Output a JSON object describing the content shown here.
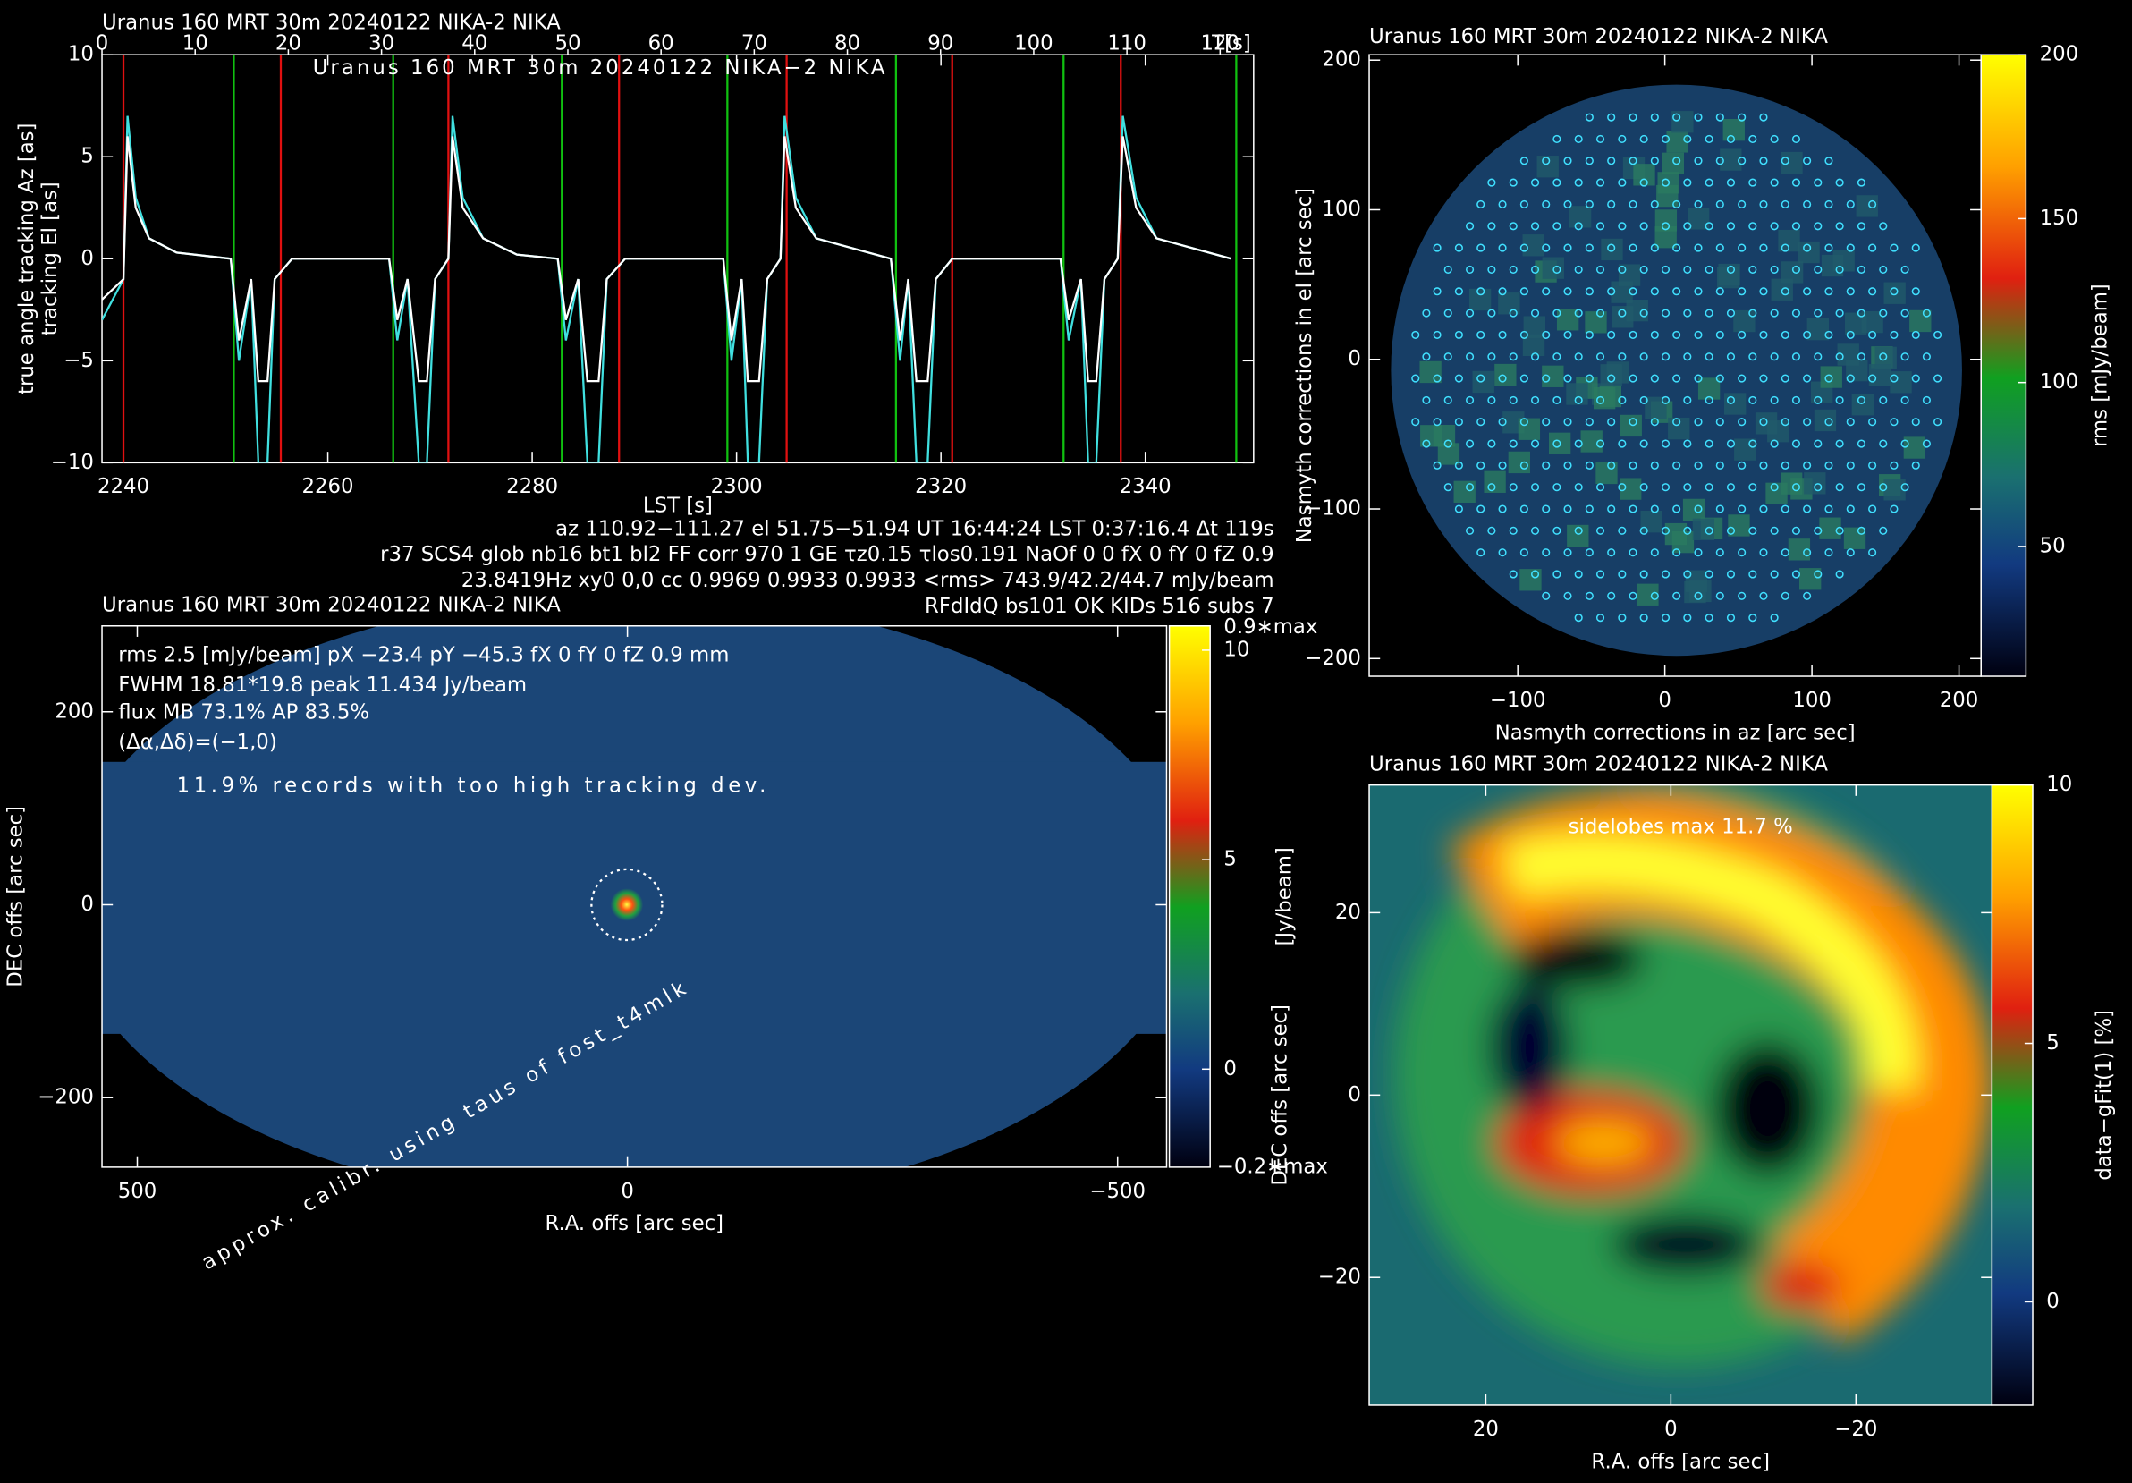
{
  "overlays": {
    "header": "Uranus   160  MRT  30m   20240122  NIKA−2  NIKA",
    "warning": "11.9% records with too high tracking dev.",
    "calibration": "approx. calibr. using taus of fost_t4mlk"
  },
  "chart_data": [
    {
      "type": "line",
      "title": "Uranus    160 MRT 30m  20240122 NIKA-2 NIKA",
      "xlabel": "LST [s]",
      "xlim": [
        2237.9,
        2350.6
      ],
      "xticks": [
        2240,
        2260,
        2280,
        2300,
        2320,
        2340
      ],
      "ylim": [
        -10,
        10
      ],
      "yticks": [
        {
          "value": -10,
          "label": "−10"
        },
        {
          "value": -5,
          "label": "−5"
        },
        0,
        5,
        10
      ],
      "top_xlim": [
        0,
        123.6
      ],
      "top_xticks": [
        0,
        10,
        20,
        30,
        40,
        50,
        60,
        70,
        80,
        90,
        100,
        110,
        120
      ],
      "top_xlabel": "T[s]",
      "x": [
        2237.9,
        2240.0,
        2240.4,
        2241.2,
        2242.5,
        2245.2,
        2250.5,
        2251.3,
        2252.5,
        2253.2,
        2254.1,
        2254.8,
        2256.5,
        2266.0,
        2266.8,
        2267.8,
        2268.9,
        2269.7,
        2270.5,
        2271.8,
        2272.2,
        2273.2,
        2275.2,
        2278.5,
        2282.5,
        2283.3,
        2284.5,
        2285.4,
        2286.5,
        2287.3,
        2289.1,
        2298.7,
        2299.5,
        2300.5,
        2301.1,
        2302.2,
        2303.0,
        2304.3,
        2304.7,
        2305.8,
        2307.8,
        2315.1,
        2316.0,
        2316.8,
        2317.6,
        2318.7,
        2319.5,
        2321.1,
        2331.7,
        2332.5,
        2333.7,
        2334.4,
        2335.2,
        2336.0,
        2337.3,
        2337.8,
        2339.1,
        2341.1,
        2348.4
      ],
      "series": [
        {
          "name": "true angle tracking Az [as]",
          "color": "#40e0e0",
          "values": [
            -3,
            -1,
            7,
            3,
            1,
            0.3,
            0,
            -5,
            -1,
            -10,
            -10,
            -1,
            0,
            0,
            -4,
            -1,
            -10,
            -10,
            -1,
            0,
            7,
            3,
            1,
            0.2,
            0,
            -4,
            -1,
            -10,
            -10,
            -1,
            0,
            0,
            -5,
            -1,
            -10,
            -10,
            -1,
            0,
            7,
            3,
            1,
            0,
            -5,
            -1,
            -10,
            -10,
            -1,
            0,
            0,
            -4,
            -1,
            -10,
            -10,
            -1,
            0,
            7,
            3,
            1,
            0
          ]
        },
        {
          "name": "tracking El [as]",
          "color": "#ffffff",
          "values": [
            -2,
            -1,
            6,
            2.5,
            1,
            0.3,
            0,
            -4,
            -1,
            -6,
            -6,
            -1,
            0,
            0,
            -3,
            -1,
            -6,
            -6,
            -1,
            0,
            6,
            2.5,
            1,
            0.2,
            0,
            -3,
            -1,
            -6,
            -6,
            -1,
            0,
            0,
            -4,
            -1,
            -6,
            -6,
            -1,
            0,
            6,
            2.5,
            1,
            0,
            -4,
            -1,
            -6,
            -6,
            -1,
            0,
            0,
            -3,
            -1,
            -6,
            -6,
            -1,
            0,
            6,
            2.5,
            1,
            0
          ]
        }
      ],
      "scan_starts": {
        "color": "#e01010",
        "x": [
          2240.0,
          2255.4,
          2271.8,
          2288.5,
          2304.9,
          2321.1,
          2337.6
        ]
      },
      "scan_ends": {
        "color": "#10c010",
        "x": [
          2250.8,
          2266.4,
          2282.9,
          2299.1,
          2315.6,
          2332.0,
          2348.9
        ]
      },
      "info": [
        "az 110.92−111.27 el 51.75−51.94 UT 16:44:24 LST 0:37:16.4 Δt 119s",
        "r37 SCS4 glob nb16 bt1 bl2 FF corr 970 1 GE τz0.15 τlos0.191 NaOf 0 0 fX 0 fY 0 fZ 0.9",
        "23.8419Hz xy0 0,0 cc 0.9969 0.9933 0.9933 <rms> 743.9/42.2/44.7 mJy/beam",
        "RFdIdQ bs101 OK KIDs 516 subs 7"
      ]
    },
    {
      "type": "heatmap",
      "title": "Uranus    160 MRT 30m  20240122 NIKA-2 NIKA",
      "xlabel": "R.A. offs [arc sec]",
      "ylabel": "DEC offs [arc sec]",
      "xlim": [
        536,
        -550
      ],
      "xticks": [
        500,
        0,
        {
          "value": -500,
          "label": "−500"
        }
      ],
      "ylim": [
        -272,
        289
      ],
      "yticks": [
        {
          "value": -200,
          "label": "−200"
        },
        0,
        200
      ],
      "annotations": [
        "rms 2.5 [mJy/beam] pX −23.4 pY −45.3 fX 0 fY 0 fZ 0.9 mm",
        "FWHM 18.81*19.8 peak 11.434 Jy/beam",
        "flux MB 73.1% AP 83.5%",
        "(Δα,Δδ)=(−1,0)"
      ],
      "colorbar": {
        "clim": [
          -2.34,
          10.58
        ],
        "ticks": [
          0,
          5,
          10
        ],
        "label": "[Jy/beam]",
        "top_label": "0.9∗max",
        "bottom_label": "−0.2∗max"
      }
    },
    {
      "type": "heatmap",
      "title": "Uranus   160 MRT 30m  20240122 NIKA-2 NIKA",
      "xlabel": "Nasmyth corrections in az [arc sec]",
      "ylabel": "Nasmyth corrections in el [arc sec]",
      "xlim": [
        -201,
        215
      ],
      "xticks": [
        {
          "value": -100,
          "label": "−100"
        },
        0,
        100,
        200
      ],
      "ylim": [
        -211.8,
        203.6
      ],
      "yticks": [
        {
          "value": -200,
          "label": "−200"
        },
        {
          "value": -100,
          "label": "−100"
        },
        0,
        100,
        200
      ],
      "colorbar": {
        "clim": [
          10.4,
          200
        ],
        "ticks": [
          50,
          100,
          150,
          200
        ],
        "label": "rms [mJy/beam]"
      }
    },
    {
      "type": "heatmap",
      "title": "Uranus   160 MRT 30m  20240122 NIKA-2 NIKA",
      "subtitle": "sidelobes max 11.7 %",
      "xlabel": "R.A. offs [arc sec]",
      "ylabel": "DEC offs [arc sec]",
      "xlim": [
        32.6,
        -34.7
      ],
      "xticks": [
        20,
        0,
        {
          "value": -20,
          "label": "−20"
        }
      ],
      "ylim": [
        -34,
        34
      ],
      "yticks": [
        {
          "value": -20,
          "label": "−20"
        },
        0,
        20
      ],
      "colorbar": {
        "clim": [
          -2,
          10
        ],
        "ticks": [
          0,
          5,
          10
        ],
        "label": "data−gFit(1) [%]"
      }
    }
  ]
}
